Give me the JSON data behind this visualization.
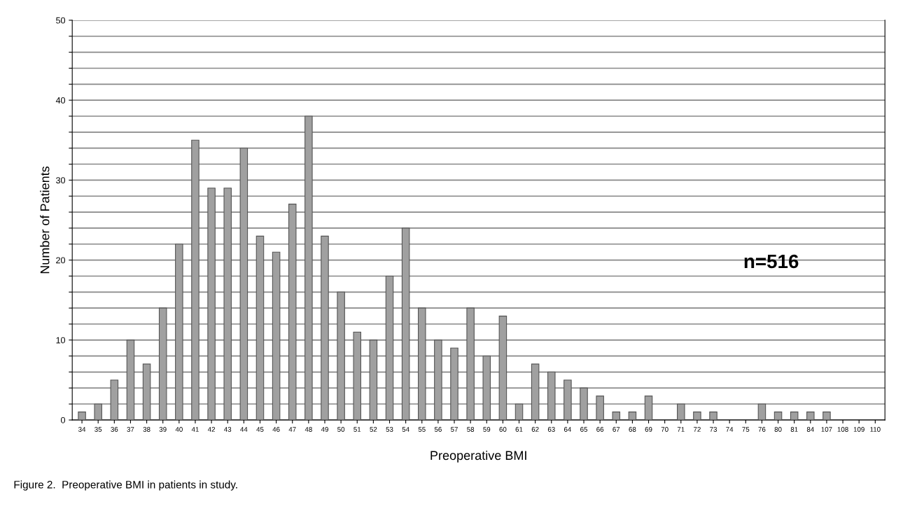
{
  "chart_data": {
    "type": "bar",
    "xlabel": "Preoperative BMI",
    "ylabel": "Number of Patients",
    "categories": [
      "34",
      "35",
      "36",
      "37",
      "38",
      "39",
      "40",
      "41",
      "42",
      "43",
      "44",
      "45",
      "46",
      "47",
      "48",
      "49",
      "50",
      "51",
      "52",
      "53",
      "54",
      "55",
      "56",
      "57",
      "58",
      "59",
      "60",
      "61",
      "62",
      "63",
      "64",
      "65",
      "66",
      "67",
      "68",
      "69",
      "70",
      "71",
      "72",
      "73",
      "74",
      "75",
      "76",
      "80",
      "81",
      "84",
      "107",
      "108",
      "109",
      "110"
    ],
    "values": [
      1,
      2,
      5,
      10,
      7,
      14,
      22,
      35,
      29,
      29,
      34,
      23,
      21,
      27,
      38,
      23,
      16,
      11,
      10,
      18,
      24,
      14,
      10,
      9,
      14,
      8,
      13,
      2,
      7,
      6,
      5,
      4,
      3,
      1,
      1,
      3,
      0,
      2,
      1,
      1,
      0,
      0,
      2,
      1,
      1,
      1,
      1,
      0,
      0,
      0
    ],
    "color": "#a0a0a0",
    "ylim": [
      0,
      50
    ],
    "yticks": [
      0,
      {
        "value": 2,
        "label": null
      },
      {
        "value": 4,
        "label": null
      },
      {
        "value": 6,
        "label": null
      },
      {
        "value": 8,
        "label": null
      },
      10,
      {
        "value": 12,
        "label": null
      },
      {
        "value": 14,
        "label": null
      },
      {
        "value": 16,
        "label": null
      },
      {
        "value": 18,
        "label": null
      },
      20,
      {
        "value": 22,
        "label": null
      },
      {
        "value": 24,
        "label": null
      },
      {
        "value": 26,
        "label": null
      },
      {
        "value": 28,
        "label": null
      },
      30,
      {
        "value": 32,
        "label": null
      },
      {
        "value": 34,
        "label": null
      },
      {
        "value": 36,
        "label": null
      },
      {
        "value": 38,
        "label": null
      },
      40,
      {
        "value": 42,
        "label": null
      },
      {
        "value": 44,
        "label": null
      },
      {
        "value": 46,
        "label": null
      },
      {
        "value": 48,
        "label": null
      },
      50
    ],
    "grid": "y",
    "annotations": [
      "n=516",
      "Figure 2.  Preoperative BMI in patients in study."
    ]
  }
}
